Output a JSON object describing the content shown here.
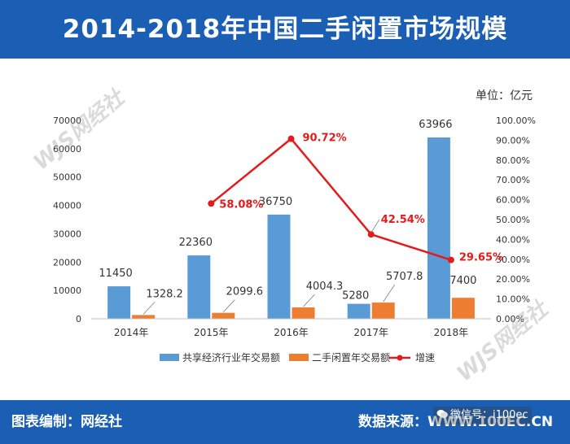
{
  "header": {
    "title": "2014-2018年中国二手闲置市场规模"
  },
  "unit_label": "单位：亿元",
  "footer": {
    "left": "图表编制：网经社",
    "right": "数据来源：WWW.100EC.CN",
    "wechat": "微信号：i100ec"
  },
  "watermark": {
    "text": "WJS网经社"
  },
  "colors": {
    "header_bg": "#1a5fb4",
    "bar1": "#5b9bd5",
    "bar2": "#ed7d31",
    "line": "#e31b1b"
  },
  "chart_data": {
    "type": "bar",
    "categories": [
      "2014年",
      "2015年",
      "2016年",
      "2017年",
      "2018年"
    ],
    "series": [
      {
        "name": "共享经济行业年交易额",
        "type": "bar",
        "axis": "left",
        "values": [
          11450,
          22360,
          36750,
          5280,
          63966
        ],
        "labels": [
          "11450",
          "22360",
          "36750",
          "5280",
          "63966"
        ]
      },
      {
        "name": "二手闲置年交易额",
        "type": "bar",
        "axis": "left",
        "values": [
          1328.2,
          2099.6,
          4004.3,
          5707.8,
          7400
        ],
        "labels": [
          "1328.2",
          "2099.6",
          "4004.3",
          "5707.8",
          "7400"
        ]
      },
      {
        "name": "增速",
        "type": "line",
        "axis": "right",
        "values": [
          null,
          58.08,
          90.72,
          42.54,
          29.65
        ],
        "labels": [
          null,
          "58.08%",
          "90.72%",
          "42.54%",
          "29.65%"
        ]
      }
    ],
    "y_left": {
      "min": 0,
      "max": 70000,
      "step": 10000,
      "ticks": [
        "0",
        "10000",
        "20000",
        "30000",
        "40000",
        "50000",
        "60000",
        "70000"
      ]
    },
    "y_right": {
      "min": 0,
      "max": 100,
      "step": 10,
      "ticks": [
        "0.00%",
        "10.00%",
        "20.00%",
        "30.00%",
        "40.00%",
        "50.00%",
        "60.00%",
        "70.00%",
        "80.00%",
        "90.00%",
        "100.00%"
      ]
    },
    "legend_position": "bottom",
    "grid": false
  }
}
